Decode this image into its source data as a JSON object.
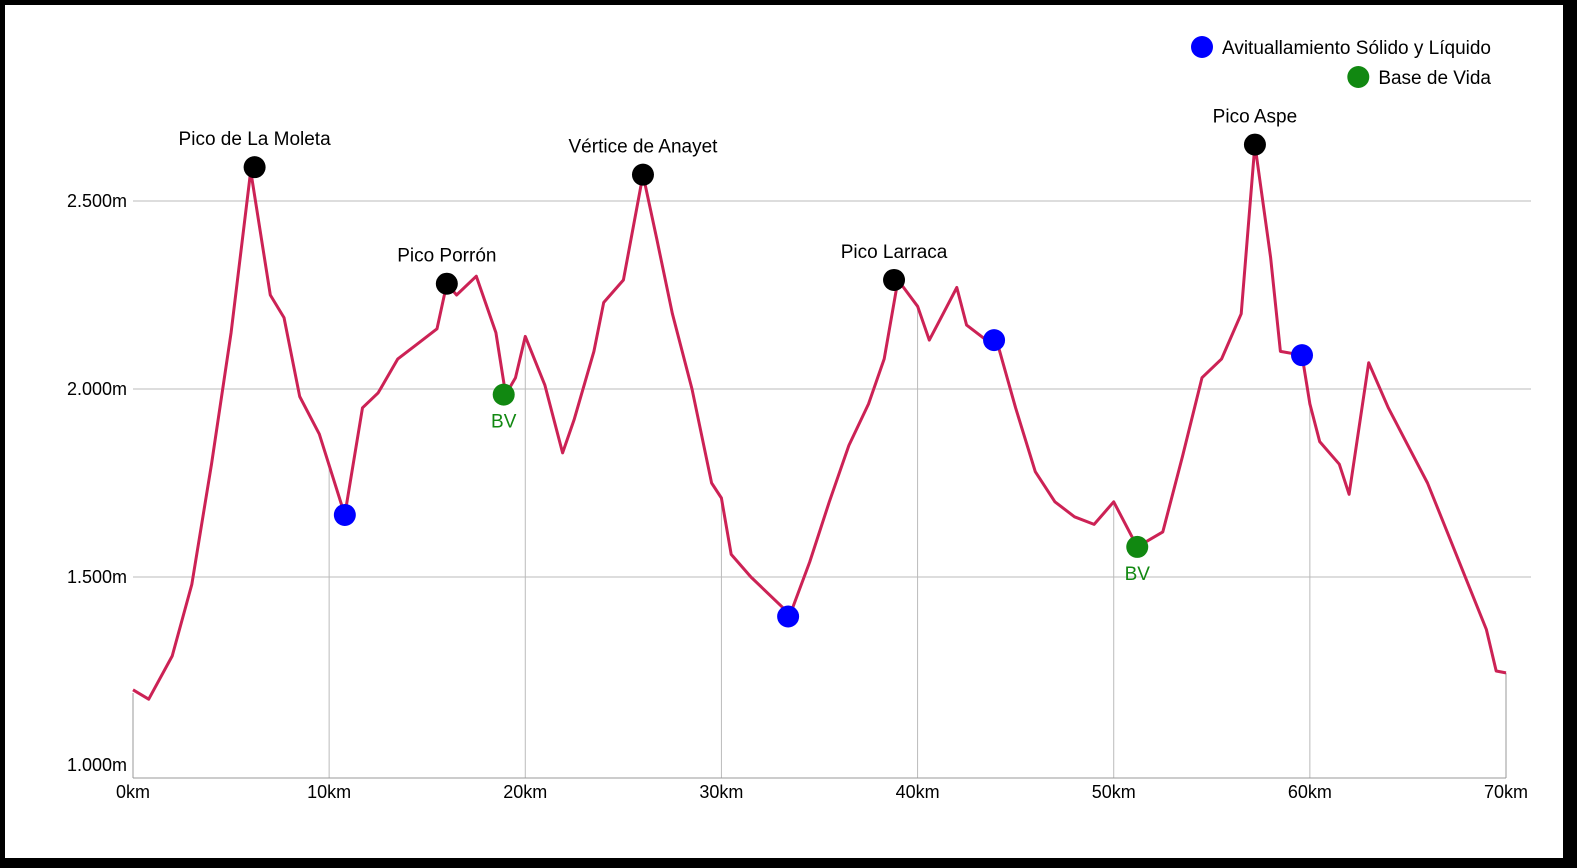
{
  "chart_data": {
    "type": "line",
    "title": "",
    "xlabel": "",
    "ylabel": "",
    "xlim": [
      0,
      70
    ],
    "ylim": [
      1000,
      2700
    ],
    "x_ticks": [
      0,
      10,
      20,
      30,
      40,
      50,
      60,
      70
    ],
    "x_tick_labels": [
      "0km",
      "10km",
      "20km",
      "30km",
      "40km",
      "50km",
      "60km",
      "70km"
    ],
    "y_ticks": [
      1000,
      1500,
      2000,
      2500
    ],
    "y_tick_labels": [
      "1.000m",
      "1.500m",
      "2.000m",
      "2.500m"
    ],
    "grid": {
      "horizontal": true,
      "vertical": true
    },
    "legend_position": "top-right",
    "colors": {
      "profile": "#cc2255",
      "peak": "#000000",
      "aid": "#0000ff",
      "base": "#118811",
      "grid": "#bbbbbb",
      "axis": "#999999"
    },
    "series": [
      {
        "x": [
          0,
          0.8,
          2,
          3,
          4,
          5,
          6,
          7,
          7.7,
          8.5,
          9.5,
          10.8,
          11.7,
          12.5,
          13.5,
          14.5,
          15.5,
          16,
          16.5,
          17.5,
          18.5,
          19,
          19.5,
          20,
          21,
          21.9,
          22.5,
          23.5,
          24,
          25,
          26,
          26.7,
          27.5,
          28.5,
          29.5,
          30,
          30.5,
          31.5,
          32.5,
          33.5,
          34.5,
          35.5,
          36.5,
          37.5,
          38.3,
          39,
          40,
          40.6,
          41,
          41.5,
          42,
          42.5,
          43.5,
          44,
          45,
          46,
          47,
          48,
          49,
          49.5,
          50,
          51.2,
          52.5,
          53.5,
          54.5,
          55.5,
          56.5,
          57.2,
          58,
          58.5,
          59.6,
          60,
          60.5,
          61.5,
          62,
          63,
          64,
          65,
          66,
          67,
          68,
          69,
          69.5,
          70
        ],
        "y": [
          1200,
          1175,
          1290,
          1480,
          1800,
          2150,
          2580,
          2250,
          2190,
          1980,
          1880,
          1665,
          1950,
          1990,
          2080,
          2120,
          2160,
          2280,
          2250,
          2300,
          2150,
          1985,
          2030,
          2140,
          2010,
          1830,
          1920,
          2100,
          2230,
          2290,
          2570,
          2400,
          2200,
          2000,
          1750,
          1710,
          1560,
          1500,
          1450,
          1400,
          1540,
          1700,
          1850,
          1960,
          2080,
          2290,
          2220,
          2130,
          2170,
          2220,
          2270,
          2170,
          2130,
          2135,
          1950,
          1780,
          1700,
          1660,
          1640,
          1670,
          1700,
          1580,
          1620,
          1820,
          2030,
          2080,
          2200,
          2650,
          2350,
          2100,
          2090,
          1960,
          1860,
          1800,
          1720,
          2070,
          1950,
          1850,
          1750,
          1620,
          1490,
          1360,
          1250,
          1245
        ]
      }
    ],
    "peaks": [
      {
        "label": "Pico de La Moleta",
        "x": 6.2,
        "y": 2590
      },
      {
        "label": "Pico Porrón",
        "x": 16.0,
        "y": 2280
      },
      {
        "label": "Vértice de Anayet",
        "x": 26.0,
        "y": 2570
      },
      {
        "label": "Pico Larraca",
        "x": 38.8,
        "y": 2290
      },
      {
        "label": "Pico Aspe",
        "x": 57.2,
        "y": 2650
      }
    ],
    "aid_stations": [
      {
        "x": 10.8,
        "y": 1665
      },
      {
        "x": 33.4,
        "y": 1395
      },
      {
        "x": 43.9,
        "y": 2130
      },
      {
        "x": 59.6,
        "y": 2090
      }
    ],
    "life_bases": [
      {
        "label": "BV",
        "x": 18.9,
        "y": 1985
      },
      {
        "label": "BV",
        "x": 51.2,
        "y": 1580
      }
    ],
    "legend": [
      {
        "label": "Avituallamiento Sólido y Líquido",
        "color": "#0000ff"
      },
      {
        "label": "Base de Vida",
        "color": "#118811"
      }
    ]
  }
}
